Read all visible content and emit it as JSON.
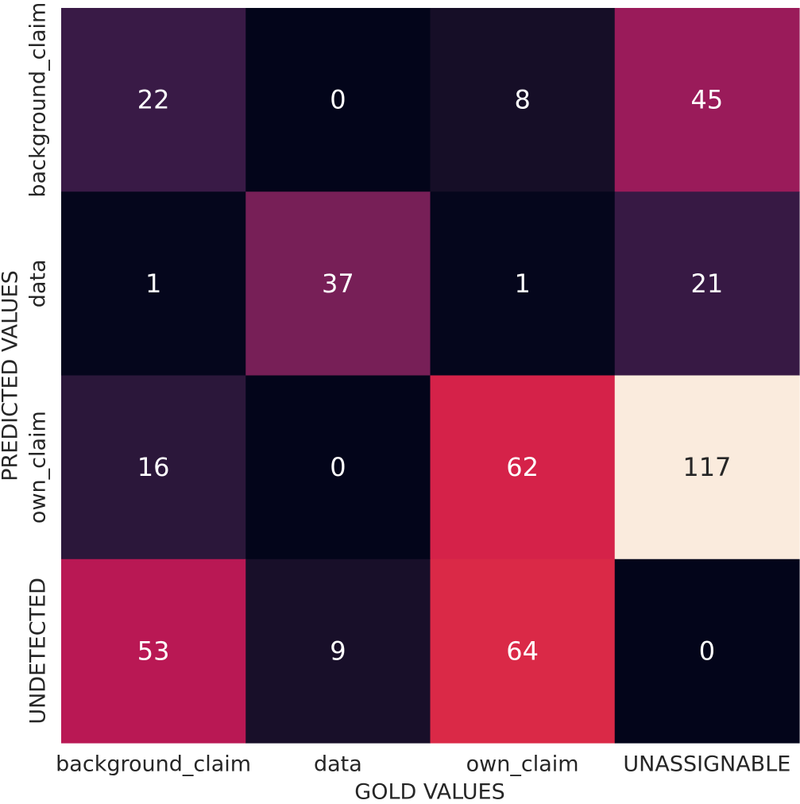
{
  "chart_data": {
    "type": "heatmap",
    "title": "",
    "xlabel": "GOLD VALUES",
    "ylabel": "PREDICTED VALUES",
    "x_categories": [
      "background_claim",
      "data",
      "own_claim",
      "UNASSIGNABLE"
    ],
    "y_categories": [
      "background_claim",
      "data",
      "own_claim",
      "UNDETECTED"
    ],
    "values": [
      [
        22,
        0,
        8,
        45
      ],
      [
        1,
        37,
        1,
        21
      ],
      [
        16,
        0,
        62,
        117
      ],
      [
        53,
        9,
        64,
        0
      ]
    ],
    "value_range": [
      0,
      117
    ],
    "colormap": "rocket",
    "colorbar": false,
    "annotations": true,
    "annotation_colors": {
      "on_dark": "#ffffff",
      "on_light": "#262626"
    }
  }
}
